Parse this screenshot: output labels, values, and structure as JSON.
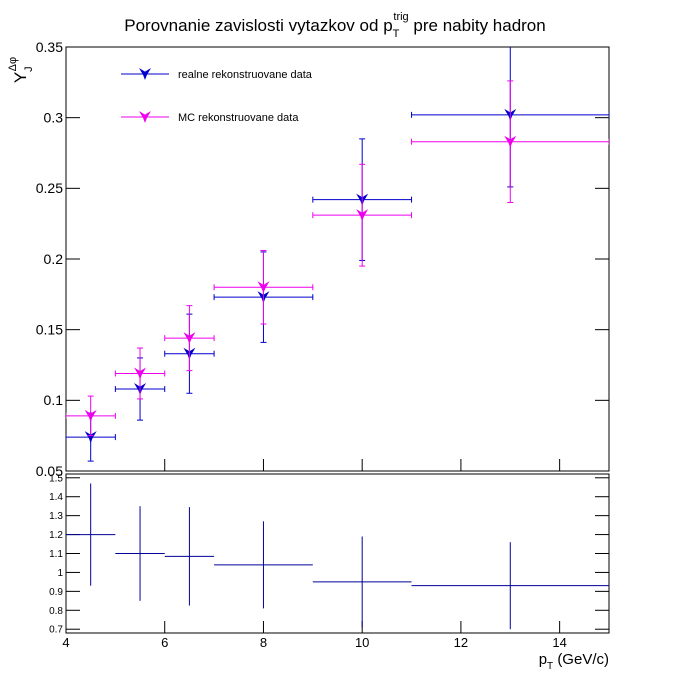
{
  "chart_data": [
    {
      "type": "scatter",
      "title": {
        "text": "Porovnanie zavislosti vytazkov od",
        "symbol": "p",
        "sub": "T",
        "sup": "trig",
        "after": "pre nabity hadron"
      },
      "y_label": {
        "symbol": "Y",
        "sub": "J",
        "sup": "Δφ"
      },
      "xlim": [
        4,
        15
      ],
      "xticks": [
        4,
        6,
        8,
        10,
        12,
        14
      ],
      "ylim": [
        0.05,
        0.35
      ],
      "yticks": [
        0.05,
        0.1,
        0.15,
        0.2,
        0.25,
        0.3,
        0.35
      ],
      "legend": "top-left",
      "series": [
        {
          "name": "realne rekonstruovane data",
          "color": "#0000cc",
          "x": [
            4.5,
            5.5,
            6.5,
            8,
            10,
            13
          ],
          "xerr": [
            0.5,
            0.5,
            0.5,
            1,
            1,
            2
          ],
          "values": [
            0.074,
            0.108,
            0.133,
            0.173,
            0.242,
            0.302
          ],
          "errors": [
            0.017,
            0.022,
            0.028,
            0.032,
            0.043,
            0.051
          ]
        },
        {
          "name": "MC rekonstruovane data",
          "color": "#ee00ee",
          "x": [
            4.5,
            5.5,
            6.5,
            8,
            10,
            13
          ],
          "xerr": [
            0.5,
            0.5,
            0.5,
            1,
            1,
            2
          ],
          "values": [
            0.089,
            0.119,
            0.144,
            0.18,
            0.231,
            0.283
          ],
          "errors": [
            0.014,
            0.018,
            0.023,
            0.026,
            0.036,
            0.043
          ]
        }
      ]
    },
    {
      "type": "scatter",
      "x_label": {
        "symbol": "p",
        "sub": "T",
        "after": "(GeV/c)"
      },
      "xlim": [
        4,
        15
      ],
      "xticks": [
        4,
        6,
        8,
        10,
        12,
        14
      ],
      "ylim": [
        0.68,
        1.52
      ],
      "yticks": [
        0.7,
        0.8,
        0.9,
        1,
        1.1,
        1.2,
        1.3,
        1.4,
        1.5
      ],
      "series": [
        {
          "color": "#000099",
          "x": [
            4.5,
            5.5,
            6.5,
            8,
            10,
            13
          ],
          "xerr": [
            0.5,
            0.5,
            0.5,
            1,
            1,
            2
          ],
          "values": [
            1.2,
            1.1,
            1.085,
            1.04,
            0.95,
            0.93
          ],
          "errors": [
            0.27,
            0.25,
            0.26,
            0.23,
            0.24,
            0.23
          ]
        }
      ]
    }
  ]
}
